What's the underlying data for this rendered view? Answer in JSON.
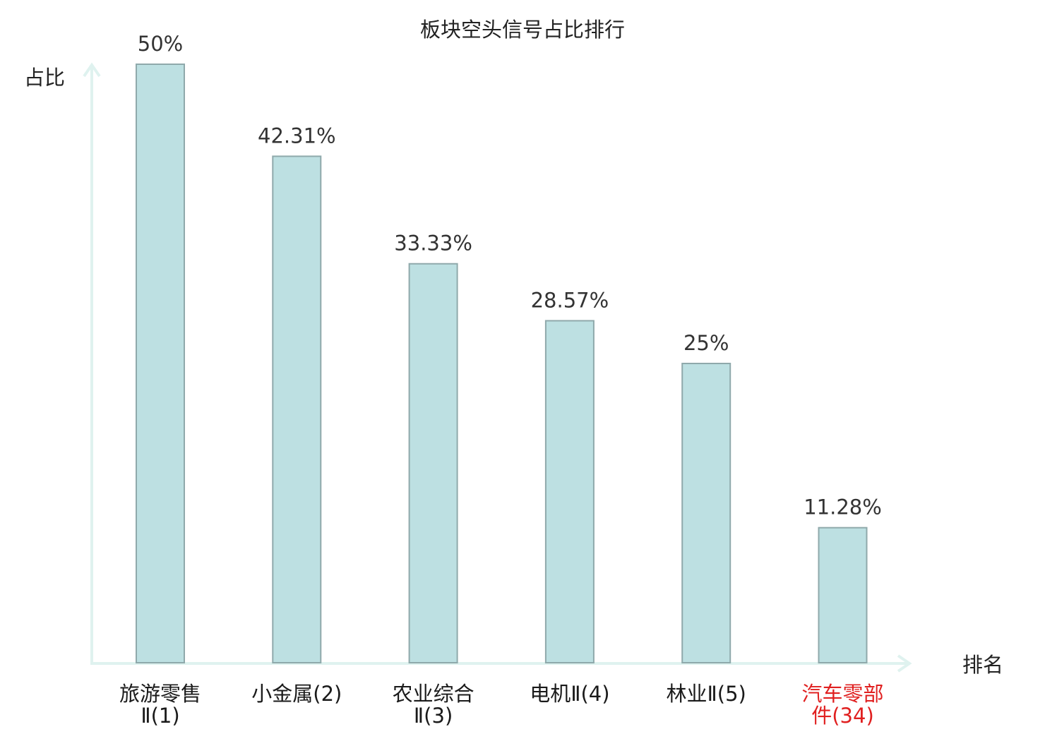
{
  "chart_data": {
    "type": "bar",
    "title": "板块空头信号占比排行",
    "ylabel": "占比",
    "xlabel": "排名",
    "ylim": [
      0,
      50
    ],
    "grid": false,
    "categories": [
      {
        "lines": [
          "旅游零售",
          "Ⅱ(1)"
        ],
        "highlight": false
      },
      {
        "lines": [
          "小金属(2)"
        ],
        "highlight": false
      },
      {
        "lines": [
          "农业综合",
          "Ⅱ(3)"
        ],
        "highlight": false
      },
      {
        "lines": [
          "电机Ⅱ(4)"
        ],
        "highlight": false
      },
      {
        "lines": [
          "林业Ⅱ(5)"
        ],
        "highlight": false
      },
      {
        "lines": [
          "汽车零部",
          "件(34)"
        ],
        "highlight": true
      }
    ],
    "values": [
      50,
      42.31,
      33.33,
      28.57,
      25,
      11.28
    ],
    "value_labels": [
      "50%",
      "42.31%",
      "33.33%",
      "28.57%",
      "25%",
      "11.28%"
    ]
  },
  "colors": {
    "bar_fill": "#bde0e2",
    "bar_stroke": "#8fa9ab",
    "axis": "#dff2ef",
    "text": "#333333",
    "highlight_text": "#e02020"
  }
}
